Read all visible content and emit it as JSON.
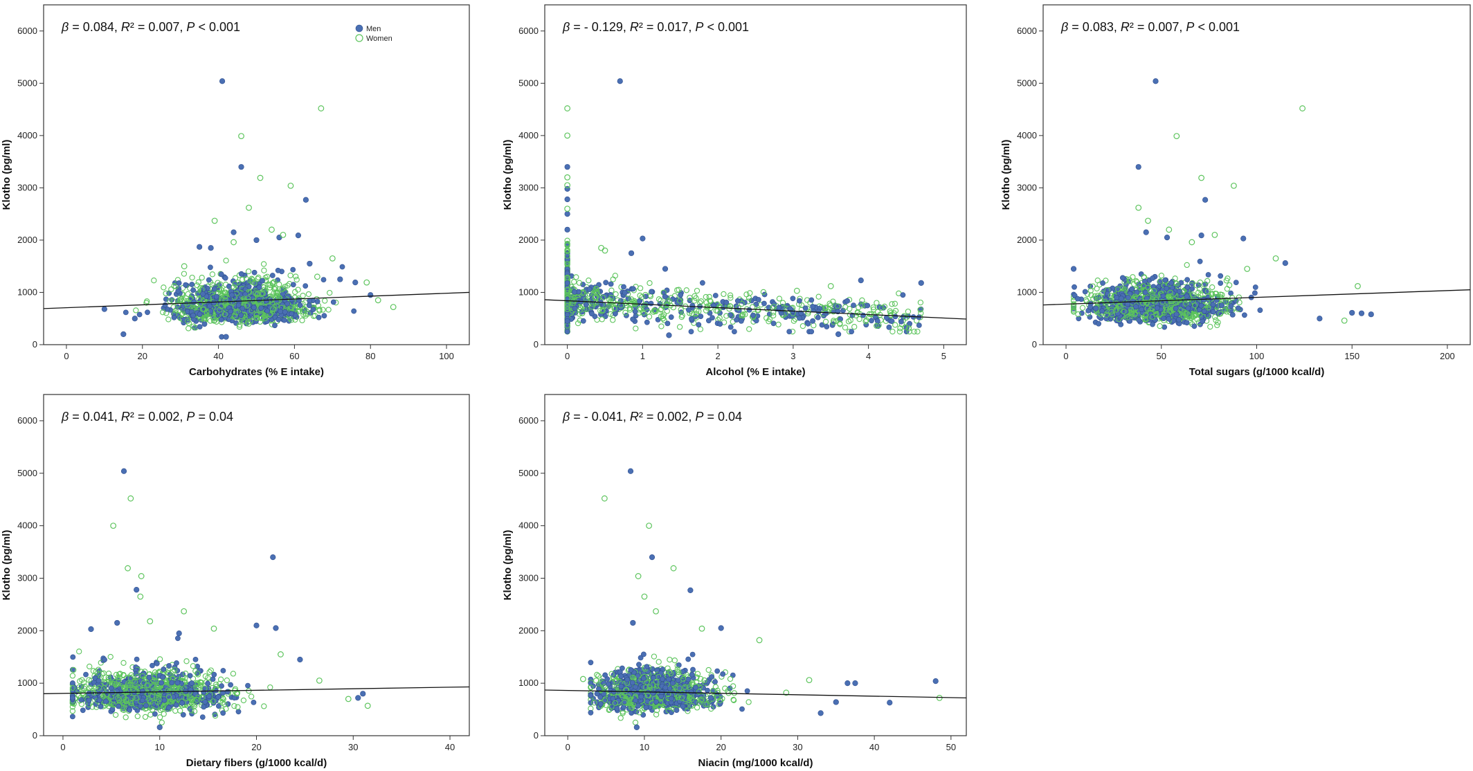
{
  "colors": {
    "men": "#4a6fb3",
    "women": "#5cc45c",
    "line": "#111111",
    "frame": "#333333"
  },
  "legend": {
    "men": "Men",
    "women": "Women"
  },
  "chart_data": [
    {
      "type": "scatter",
      "stat": {
        "beta": "0.084",
        "r2": "0.007",
        "p_op": "<",
        "p": "0.001"
      },
      "xlabel": "Carbohydrates (% E intake)",
      "ylabel": "Klotho (pg/ml)",
      "xlim": [
        -6,
        106
      ],
      "ylim": [
        0,
        6500
      ],
      "xticks": [
        0,
        20,
        40,
        60,
        80,
        100
      ],
      "yticks": [
        0,
        1000,
        2000,
        3000,
        4000,
        5000,
        6000
      ],
      "line": {
        "x": [
          -6,
          106
        ],
        "y": [
          690,
          1000
        ]
      },
      "cloud": {
        "x_center": 46,
        "x_spread": 9,
        "x_min": 14,
        "x_max": 86,
        "y_center": 720,
        "y_spread": 190,
        "y_min": 150
      },
      "series": [
        {
          "name": "Men",
          "points": [
            [
              41,
              5040
            ],
            [
              46,
              3400
            ],
            [
              63,
              2770
            ],
            [
              44,
              2150
            ],
            [
              56,
              2050
            ],
            [
              61,
              2090
            ],
            [
              50,
              2000
            ],
            [
              35,
              1870
            ],
            [
              38,
              1850
            ],
            [
              64,
              1550
            ],
            [
              72,
              1250
            ],
            [
              76,
              1190
            ],
            [
              80,
              950
            ],
            [
              10,
              680
            ],
            [
              15,
              200
            ],
            [
              42,
              150
            ],
            [
              18,
              500
            ]
          ]
        },
        {
          "name": "Women",
          "points": [
            [
              67,
              4520
            ],
            [
              46,
              3990
            ],
            [
              51,
              3190
            ],
            [
              59,
              3040
            ],
            [
              48,
              2620
            ],
            [
              39,
              2370
            ],
            [
              54,
              2200
            ],
            [
              57,
              2100
            ],
            [
              44,
              1960
            ],
            [
              70,
              1650
            ],
            [
              66,
              1300
            ],
            [
              79,
              1190
            ],
            [
              86,
              720
            ],
            [
              82,
              850
            ],
            [
              31,
              1500
            ]
          ]
        }
      ]
    },
    {
      "type": "scatter",
      "stat": {
        "beta": "- 0.129",
        "r2": "0.017",
        "p_op": "<",
        "p": "0.001"
      },
      "xlabel": "Alcohol (% E intake)",
      "ylabel": "Klotho (pg/ml)",
      "xlim": [
        -0.3,
        5.3
      ],
      "ylim": [
        0,
        6500
      ],
      "xticks": [
        0,
        1,
        2,
        3,
        4,
        5
      ],
      "yticks": [
        0,
        1000,
        2000,
        3000,
        4000,
        5000,
        6000
      ],
      "line": {
        "x": [
          -0.3,
          5.3
        ],
        "y": [
          860,
          490
        ]
      },
      "cloud": {
        "x_center": 0,
        "x_spread": 0,
        "x_min": 0,
        "x_max": 0,
        "y_center": 850,
        "y_spread": 330,
        "y_min": 250
      },
      "scatter_extra": {
        "x_min": 0.05,
        "x_max": 4.7,
        "y_base": 830,
        "y_slope": -70,
        "y_spread": 170
      },
      "series": [
        {
          "name": "Men",
          "points": [
            [
              0.7,
              5040
            ],
            [
              0,
              3400
            ],
            [
              0,
              2980
            ],
            [
              0,
              2780
            ],
            [
              0,
              2500
            ],
            [
              0,
              2200
            ],
            [
              1.0,
              2030
            ],
            [
              0.85,
              1750
            ],
            [
              1.3,
              1450
            ],
            [
              3.9,
              1230
            ],
            [
              4.7,
              1180
            ],
            [
              3.6,
              200
            ],
            [
              1.35,
              180
            ]
          ]
        },
        {
          "name": "Women",
          "points": [
            [
              0,
              4520
            ],
            [
              0,
              4000
            ],
            [
              0,
              3200
            ],
            [
              0,
              3050
            ],
            [
              0,
              2600
            ],
            [
              0.45,
              1850
            ],
            [
              0.5,
              1800
            ],
            [
              3.5,
              1120
            ],
            [
              4.5,
              520
            ],
            [
              3.05,
              1030
            ]
          ]
        }
      ]
    },
    {
      "type": "scatter",
      "stat": {
        "beta": "0.083",
        "r2": "0.007",
        "p_op": "<",
        "p": "0.001"
      },
      "xlabel": "Total sugars (g/1000 kcal/d)",
      "ylabel": "Klotho (pg/ml)",
      "xlim": [
        -12,
        212
      ],
      "ylim": [
        0,
        6500
      ],
      "xticks": [
        0,
        50,
        100,
        150,
        200
      ],
      "yticks": [
        0,
        1000,
        2000,
        3000,
        4000,
        5000,
        6000
      ],
      "line": {
        "x": [
          -12,
          212
        ],
        "y": [
          760,
          1050
        ]
      },
      "cloud": {
        "x_center": 48,
        "x_spread": 18,
        "x_min": 4,
        "x_max": 130,
        "y_center": 720,
        "y_spread": 190,
        "y_min": 150
      },
      "series": [
        {
          "name": "Men",
          "points": [
            [
              47,
              5040
            ],
            [
              38,
              3400
            ],
            [
              73,
              2770
            ],
            [
              42,
              2150
            ],
            [
              53,
              2050
            ],
            [
              93,
              2030
            ],
            [
              71,
              2090
            ],
            [
              115,
              1560
            ],
            [
              160,
              580
            ],
            [
              155,
              600
            ],
            [
              150,
              610
            ],
            [
              133,
              500
            ],
            [
              4,
              1450
            ]
          ]
        },
        {
          "name": "Women",
          "points": [
            [
              124,
              4520
            ],
            [
              58,
              3990
            ],
            [
              71,
              3190
            ],
            [
              88,
              3040
            ],
            [
              38,
              2620
            ],
            [
              43,
              2370
            ],
            [
              54,
              2200
            ],
            [
              78,
              2100
            ],
            [
              66,
              1960
            ],
            [
              110,
              1650
            ],
            [
              153,
              1120
            ],
            [
              146,
              460
            ],
            [
              95,
              1450
            ]
          ]
        }
      ]
    },
    {
      "type": "scatter",
      "stat": {
        "beta": "0.041",
        "r2": "0.002",
        "p_op": "=",
        "p": "0.04"
      },
      "xlabel": "Dietary fibers (g/1000 kcal/d)",
      "ylabel": "Klotho (pg/ml)",
      "xlim": [
        -2,
        42
      ],
      "ylim": [
        0,
        6500
      ],
      "xticks": [
        0,
        10,
        20,
        30,
        40
      ],
      "yticks": [
        0,
        1000,
        2000,
        3000,
        4000,
        5000,
        6000
      ],
      "line": {
        "x": [
          -2,
          42
        ],
        "y": [
          800,
          930
        ]
      },
      "cloud": {
        "x_center": 9,
        "x_spread": 3.8,
        "x_min": 1,
        "x_max": 27,
        "y_center": 760,
        "y_spread": 190,
        "y_min": 150
      },
      "series": [
        {
          "name": "Men",
          "points": [
            [
              6.3,
              5040
            ],
            [
              7.6,
              2780
            ],
            [
              21.7,
              3400
            ],
            [
              5.6,
              2150
            ],
            [
              20,
              2100
            ],
            [
              22,
              2050
            ],
            [
              2.9,
              2030
            ],
            [
              12,
              1950
            ],
            [
              24.5,
              1450
            ],
            [
              31,
              800
            ],
            [
              30.5,
              720
            ],
            [
              10,
              160
            ]
          ]
        },
        {
          "name": "Women",
          "points": [
            [
              7,
              4520
            ],
            [
              5.2,
              4000
            ],
            [
              6.7,
              3190
            ],
            [
              8.1,
              3040
            ],
            [
              8,
              2650
            ],
            [
              12.5,
              2370
            ],
            [
              9,
              2180
            ],
            [
              15.6,
              2040
            ],
            [
              22.5,
              1550
            ],
            [
              31.5,
              570
            ],
            [
              29.5,
              700
            ],
            [
              26.5,
              1050
            ]
          ]
        }
      ]
    },
    {
      "type": "scatter",
      "stat": {
        "beta": "- 0.041",
        "r2": "0.002",
        "p_op": "=",
        "p": "0.04"
      },
      "xlabel": "Niacin (mg/1000 kcal/d)",
      "ylabel": "Klotho (pg/ml)",
      "xlim": [
        -3,
        52
      ],
      "ylim": [
        0,
        6500
      ],
      "xticks": [
        0,
        10,
        20,
        30,
        40,
        50
      ],
      "yticks": [
        0,
        1000,
        2000,
        3000,
        4000,
        5000,
        6000
      ],
      "line": {
        "x": [
          -3,
          52
        ],
        "y": [
          870,
          720
        ]
      },
      "cloud": {
        "x_center": 11,
        "x_spread": 3.8,
        "x_min": 3,
        "x_max": 30,
        "y_center": 780,
        "y_spread": 190,
        "y_min": 150
      },
      "series": [
        {
          "name": "Men",
          "points": [
            [
              8.2,
              5040
            ],
            [
              11,
              3400
            ],
            [
              16,
              2770
            ],
            [
              8.5,
              2150
            ],
            [
              20,
              2050
            ],
            [
              48,
              1040
            ],
            [
              42,
              630
            ],
            [
              37.5,
              1000
            ],
            [
              36.5,
              1000
            ],
            [
              35,
              640
            ],
            [
              9,
              160
            ],
            [
              33,
              430
            ]
          ]
        },
        {
          "name": "Women",
          "points": [
            [
              4.8,
              4520
            ],
            [
              10.6,
              4000
            ],
            [
              13.8,
              3190
            ],
            [
              9.2,
              3040
            ],
            [
              10,
              2650
            ],
            [
              11.5,
              2370
            ],
            [
              17.5,
              2040
            ],
            [
              25,
              1820
            ],
            [
              48.5,
              720
            ],
            [
              31.5,
              1060
            ],
            [
              28.5,
              820
            ],
            [
              2,
              1080
            ]
          ]
        }
      ]
    }
  ]
}
